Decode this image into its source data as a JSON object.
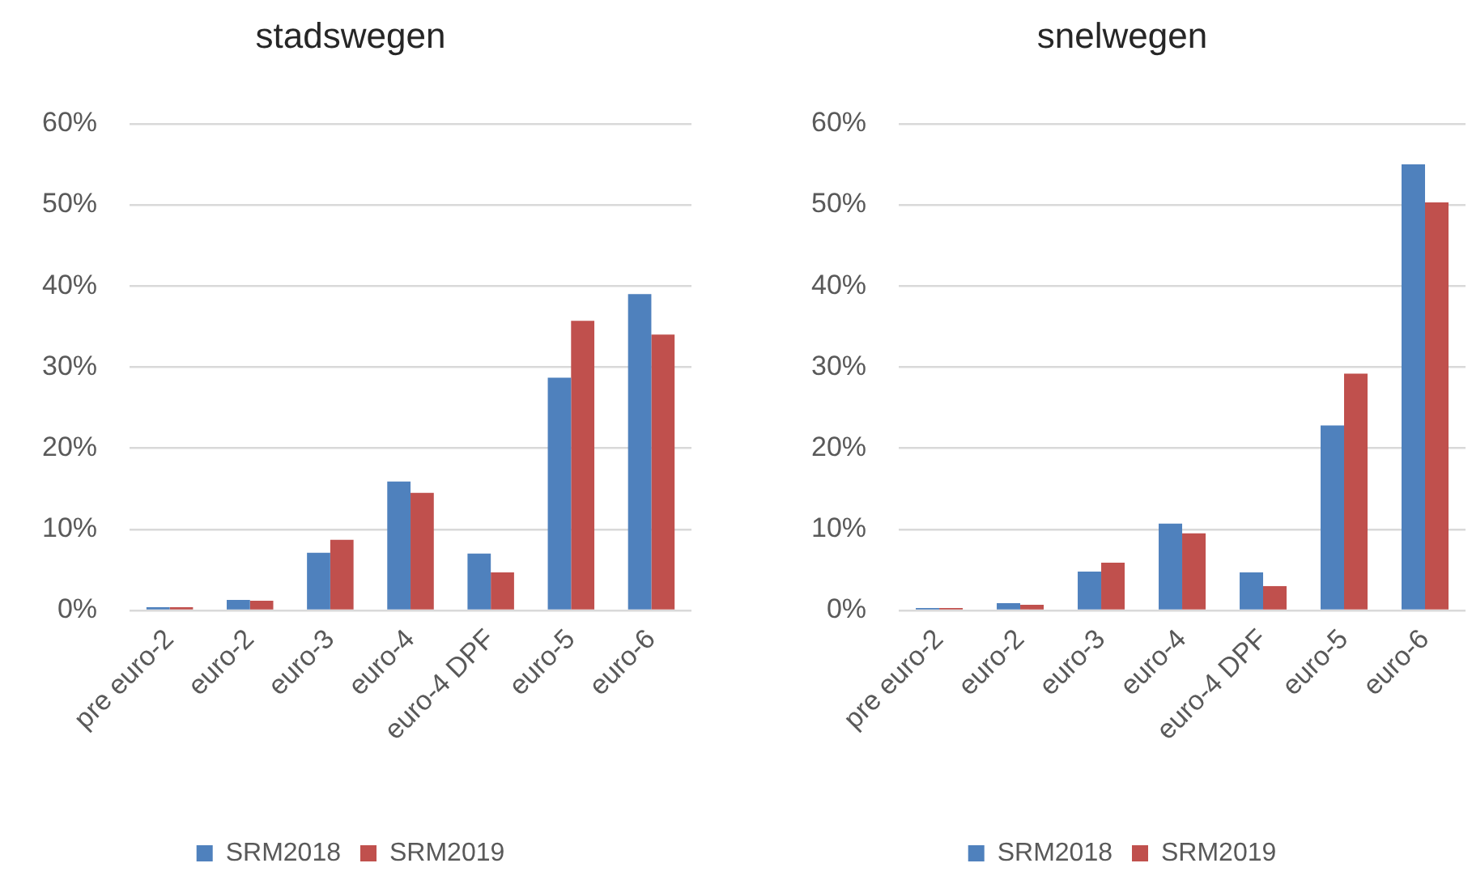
{
  "chart_data": [
    {
      "type": "bar",
      "title": "stadswegen",
      "categories": [
        "pre euro-2",
        "euro-2",
        "euro-3",
        "euro-4",
        "euro-4 DPF",
        "euro-5",
        "euro-6"
      ],
      "series": [
        {
          "name": "SRM2018",
          "color": "#4f81bd",
          "values": [
            0.4,
            1.3,
            7.1,
            15.9,
            7.0,
            28.7,
            39.0
          ]
        },
        {
          "name": "SRM2019",
          "color": "#c0504d",
          "values": [
            0.4,
            1.2,
            8.7,
            14.5,
            4.7,
            35.7,
            34.0
          ]
        }
      ],
      "ylim": [
        0,
        60
      ],
      "yticks": [
        {
          "value": 0,
          "label": "0%"
        },
        {
          "value": 10,
          "label": "10%"
        },
        {
          "value": 20,
          "label": "20%"
        },
        {
          "value": 30,
          "label": "30%"
        },
        {
          "value": 40,
          "label": "40%"
        },
        {
          "value": 50,
          "label": "50%"
        },
        {
          "value": 60,
          "label": "60%"
        }
      ],
      "grid": "y",
      "legend": "bottom"
    },
    {
      "type": "bar",
      "title": "snelwegen",
      "categories": [
        "pre euro-2",
        "euro-2",
        "euro-3",
        "euro-4",
        "euro-4 DPF",
        "euro-5",
        "euro-6"
      ],
      "series": [
        {
          "name": "SRM2018",
          "color": "#4f81bd",
          "values": [
            0.3,
            0.9,
            4.8,
            10.7,
            4.7,
            22.8,
            55.0
          ]
        },
        {
          "name": "SRM2019",
          "color": "#c0504d",
          "values": [
            0.3,
            0.7,
            5.9,
            9.5,
            3.0,
            29.2,
            50.3
          ]
        }
      ],
      "ylim": [
        0,
        60
      ],
      "yticks": [
        {
          "value": 0,
          "label": "0%"
        },
        {
          "value": 10,
          "label": "10%"
        },
        {
          "value": 20,
          "label": "20%"
        },
        {
          "value": 30,
          "label": "30%"
        },
        {
          "value": 40,
          "label": "40%"
        },
        {
          "value": 50,
          "label": "50%"
        },
        {
          "value": 60,
          "label": "60%"
        }
      ],
      "grid": "y",
      "legend": "bottom"
    }
  ]
}
